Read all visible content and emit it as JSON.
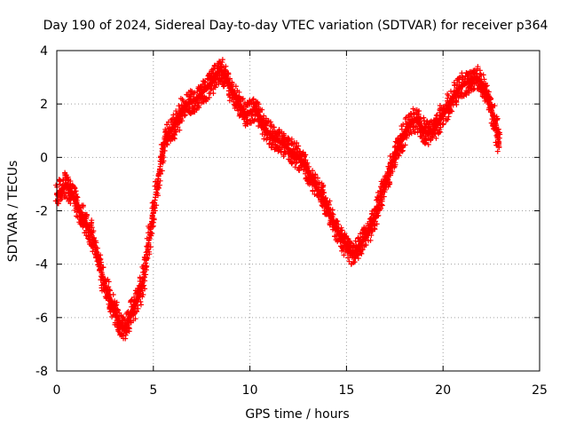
{
  "chart_data": {
    "type": "scatter",
    "title": "Day 190 of 2024, Sidereal Day-to-day VTEC variation (SDTVAR) for receiver p364",
    "xlabel": "GPS time / hours",
    "ylabel": "SDTVAR / TECUs",
    "xlim": [
      0,
      25
    ],
    "ylim": [
      -8,
      4
    ],
    "xticks": [
      0,
      5,
      10,
      15,
      20,
      25
    ],
    "yticks": [
      -8,
      -6,
      -4,
      -2,
      0,
      2,
      4
    ],
    "grid": true,
    "marker": "plus",
    "color": "#ff0000",
    "series": [
      {
        "name": "SDTVAR",
        "x": [
          0.0,
          0.25,
          0.5,
          0.75,
          1.0,
          1.25,
          1.5,
          1.75,
          2.0,
          2.25,
          2.5,
          2.75,
          3.0,
          3.25,
          3.5,
          3.75,
          4.0,
          4.25,
          4.5,
          4.75,
          5.0,
          5.25,
          5.5,
          5.75,
          6.0,
          6.25,
          6.5,
          6.75,
          7.0,
          7.25,
          7.5,
          7.75,
          8.0,
          8.25,
          8.5,
          8.75,
          9.0,
          9.25,
          9.5,
          9.75,
          10.0,
          10.25,
          10.5,
          10.75,
          11.0,
          11.25,
          11.5,
          11.75,
          12.0,
          12.25,
          12.5,
          12.75,
          13.0,
          13.25,
          13.5,
          13.75,
          14.0,
          14.25,
          14.5,
          14.75,
          15.0,
          15.25,
          15.5,
          15.75,
          16.0,
          16.25,
          16.5,
          16.75,
          17.0,
          17.25,
          17.5,
          17.75,
          18.0,
          18.25,
          18.5,
          18.75,
          19.0,
          19.25,
          19.5,
          19.75,
          20.0,
          20.25,
          20.5,
          20.75,
          21.0,
          21.25,
          21.5,
          21.75,
          22.0,
          22.25,
          22.5,
          22.75,
          22.9
        ],
        "y": [
          -1.4,
          -1.2,
          -1.0,
          -1.3,
          -1.7,
          -2.1,
          -2.5,
          -2.8,
          -3.4,
          -4.1,
          -4.8,
          -5.3,
          -5.8,
          -6.2,
          -6.5,
          -6.0,
          -5.6,
          -5.2,
          -4.5,
          -3.2,
          -2.0,
          -0.8,
          0.3,
          0.9,
          1.1,
          1.4,
          1.8,
          2.0,
          2.1,
          2.2,
          2.4,
          2.6,
          2.8,
          3.1,
          3.3,
          3.0,
          2.6,
          2.3,
          1.9,
          1.6,
          1.7,
          1.8,
          1.5,
          1.1,
          0.9,
          0.7,
          0.6,
          0.5,
          0.3,
          0.2,
          0.0,
          -0.2,
          -0.5,
          -0.9,
          -1.2,
          -1.5,
          -1.9,
          -2.3,
          -2.7,
          -3.0,
          -3.3,
          -3.6,
          -3.5,
          -3.2,
          -3.0,
          -2.6,
          -2.2,
          -1.6,
          -1.0,
          -0.5,
          0.1,
          0.5,
          0.9,
          1.2,
          1.4,
          1.3,
          1.0,
          0.9,
          1.0,
          1.3,
          1.6,
          1.9,
          2.2,
          2.5,
          2.7,
          2.8,
          2.9,
          3.0,
          2.8,
          2.3,
          1.8,
          1.2,
          0.4
        ]
      }
    ]
  }
}
